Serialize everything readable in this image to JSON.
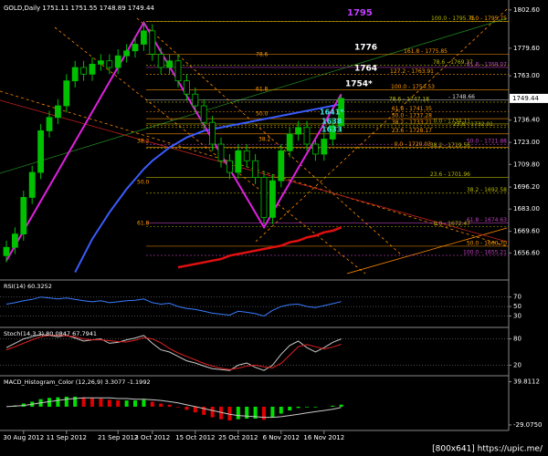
{
  "chart_data": [
    {
      "type": "candlestick",
      "title": "GOLD,Daily 1751.11 1751.55 1748.89 1749.44",
      "categories": [
        null,
        null,
        "30 Aug 2012",
        null,
        null,
        null,
        null,
        "11 Sep 2012",
        null,
        null,
        null,
        null,
        null,
        "21 Sep 2012",
        null,
        null,
        null,
        "3 Oct 2012",
        null,
        null,
        null,
        null,
        "15 Oct 2012",
        null,
        null,
        null,
        null,
        "25 Oct 2012",
        null,
        null,
        null,
        null,
        "6 Nov 2012",
        null,
        null,
        null,
        null,
        "16 Nov 2012",
        null,
        null
      ],
      "open": [
        1655,
        1660,
        1668,
        1690,
        1705,
        1730,
        1738,
        1745,
        1760,
        1768,
        1764,
        1770,
        1772,
        1768,
        1775,
        1778,
        1782,
        1790,
        1776,
        1768,
        1772,
        1760,
        1752,
        1745,
        1735,
        1722,
        1712,
        1705,
        1718,
        1712,
        1702,
        1678,
        1700,
        1718,
        1728,
        1732,
        1722,
        1716,
        1725,
        1733
      ],
      "high": [
        1664,
        1672,
        1694,
        1709,
        1734,
        1742,
        1749,
        1764,
        1772,
        1772,
        1774,
        1776,
        1776,
        1779,
        1782,
        1786,
        1795,
        1794,
        1780,
        1776,
        1776,
        1764,
        1756,
        1749,
        1739,
        1726,
        1716,
        1722,
        1722,
        1716,
        1706,
        1704,
        1722,
        1732,
        1736,
        1736,
        1726,
        1729,
        1737,
        1751.55
      ],
      "low": [
        1651,
        1656,
        1664,
        1686,
        1701,
        1726,
        1734,
        1741,
        1756,
        1760,
        1760,
        1766,
        1764,
        1764,
        1771,
        1774,
        1778,
        1772,
        1764,
        1764,
        1756,
        1748,
        1741,
        1731,
        1718,
        1708,
        1701,
        1701,
        1708,
        1698,
        1674,
        1674,
        1696,
        1714,
        1724,
        1718,
        1712,
        1712,
        1721,
        1729
      ],
      "close": [
        1660,
        1668,
        1690,
        1705,
        1730,
        1738,
        1745,
        1760,
        1768,
        1764,
        1770,
        1772,
        1768,
        1775,
        1778,
        1782,
        1790,
        1776,
        1768,
        1772,
        1760,
        1752,
        1745,
        1735,
        1722,
        1712,
        1705,
        1718,
        1712,
        1702,
        1678,
        1700,
        1718,
        1728,
        1732,
        1722,
        1716,
        1725,
        1733,
        1749.44
      ],
      "up_color": "#00c000",
      "down_color": "#000000",
      "series": [
        {
          "color": "#3a5cff",
          "width": 2,
          "values": [
            null,
            null,
            null,
            null,
            null,
            null,
            null,
            null,
            1645,
            1655,
            1665,
            1673,
            1681,
            1688,
            1695,
            1701,
            1707,
            1712,
            1716,
            1720,
            1723,
            1726,
            1728,
            1730,
            1731,
            1732,
            1733,
            1734,
            1735,
            1736,
            1737,
            1738,
            1739,
            1740,
            1741,
            1742,
            1743,
            1744,
            1745,
            1746
          ]
        },
        {
          "color": "#e01010",
          "width": 2.5,
          "values": [
            null,
            null,
            null,
            null,
            null,
            null,
            null,
            null,
            null,
            null,
            null,
            null,
            null,
            null,
            null,
            null,
            null,
            null,
            null,
            null,
            1648,
            1649,
            1650,
            1651,
            1652,
            1653,
            1655,
            1656,
            1657,
            1658,
            1659,
            1660,
            1661,
            1663,
            1664,
            1666,
            1667,
            1669,
            1670,
            1672
          ]
        },
        {
          "color": "#e020e0",
          "width": 2,
          "values": [
            1652,
            1660.9,
            1669.9,
            1678.8,
            1687.8,
            1696.7,
            1705.6,
            1714.6,
            1723.5,
            1732.4,
            1741.4,
            1750.3,
            1759.3,
            1768.2,
            1777.1,
            1786.1,
            1795,
            1786.2,
            1777.4,
            1768.6,
            1759.8,
            1751.1,
            1742.3,
            1733.5,
            1724.7,
            1715.9,
            1707.1,
            1698.4,
            1689.6,
            1680.8,
            1672,
            1680.9,
            1689.8,
            1698.7,
            1707.6,
            1716.4,
            1725.3,
            1734.2,
            1743.1,
            1752
          ]
        }
      ],
      "ylim": [
        1641.5,
        1805.8
      ],
      "yticks": [
        {
          "value": 1802.6,
          "label": "1802.60"
        },
        {
          "value": 1779.6,
          "label": "1779.60"
        },
        {
          "value": 1763,
          "label": "1763.00"
        },
        {
          "value": 1736.4,
          "label": "1736.40"
        },
        {
          "value": 1723,
          "label": "1723.00"
        },
        {
          "value": 1709.8,
          "label": "1709.80"
        },
        {
          "value": 1696.2,
          "label": "1696.20"
        },
        {
          "value": 1683,
          "label": "1683.00"
        },
        {
          "value": 1669.6,
          "label": "1669.60"
        },
        {
          "value": 1656.6,
          "label": "1656.60"
        }
      ],
      "last_price": {
        "value": 1749.44,
        "label": "1749.44"
      },
      "fib_levels": [
        {
          "label": "100.0 - 1795.75",
          "value": 1795.75,
          "color": "#b8b800"
        },
        {
          "label": "0.0 - 1795.75",
          "value": 1795.75,
          "color": "#ff9900"
        },
        {
          "label": "161.8 - 1775.85",
          "value": 1775.85,
          "color": "#ff9900"
        },
        {
          "label": "78.6 - 1769.37",
          "value": 1769.37,
          "color": "#b8b800"
        },
        {
          "label": "61.8 - 1768.07",
          "value": 1768.07,
          "color": "#c040c0"
        },
        {
          "label": "127.2 - 1763.91",
          "value": 1763.91,
          "color": "#ff9900"
        },
        {
          "label": "100.0 - 1754.53",
          "value": 1754.53,
          "color": "#ff9900"
        },
        {
          "label": "78.6 - 1747.18",
          "value": 1747.18,
          "color": "#b8b800"
        },
        {
          "label": "- 1748.66",
          "value": 1748.66,
          "color": "#dddddd"
        },
        {
          "label": "61.8 - 1741.35",
          "value": 1741.35,
          "color": "#ff9900"
        },
        {
          "label": "50.0 - 1737.28",
          "value": 1737.28,
          "color": "#ff9900"
        },
        {
          "label": "38.2 - 1733.21",
          "value": 1733.21,
          "color": "#ff9900"
        },
        {
          "label": "0.0 - 1734.11",
          "value": 1734.11,
          "color": "#b8b800"
        },
        {
          "label": "23.6 - 1732.01",
          "value": 1732.01,
          "color": "#b8b800"
        },
        {
          "label": "23.6 - 1728.17",
          "value": 1728.17,
          "color": "#ff9900"
        },
        {
          "label": "50.0 - 1721.88",
          "value": 1721.88,
          "color": "#c040c0"
        },
        {
          "label": "0.0 - 1720.03",
          "value": 1720.03,
          "color": "#ff9900"
        },
        {
          "label": "38.2 - 1719.56",
          "value": 1719.56,
          "color": "#b8b800"
        },
        {
          "label": "23.6 - 1701.96",
          "value": 1701.96,
          "color": "#b8b800"
        },
        {
          "label": "38.2 - 1692.58",
          "value": 1692.58,
          "color": "#b8b800"
        },
        {
          "label": "61.8 - 1674.63",
          "value": 1674.63,
          "color": "#c040c0"
        },
        {
          "label": "0.0 - 1672.47",
          "value": 1672.47,
          "color": "#b8b800"
        },
        {
          "label": "50.0 - 1660.70",
          "value": 1660.7,
          "color": "#ff9900"
        },
        {
          "label": "100.0 - 1655.21",
          "value": 1655.21,
          "color": "#c040c0"
        }
      ],
      "targets": [
        {
          "label": "1795",
          "color": "#c040ff"
        },
        {
          "label": "1776",
          "color": "#ffffff"
        },
        {
          "label": "1764",
          "color": "#ffffff"
        },
        {
          "label": "1754*",
          "color": "#ffffff"
        },
        {
          "label": "1641*",
          "color": "#40e0e0"
        },
        {
          "label": "1638",
          "color": "#40e0e0"
        },
        {
          "label": "1633",
          "color": "#40e0e0"
        }
      ],
      "fib_marks": [
        "78.6",
        "61.8",
        "50.0",
        "38.2",
        "38.2",
        "50.0",
        "61.8"
      ],
      "watermark": "[800x641] https://upic.me/"
    },
    {
      "type": "line",
      "title": "RSI(14) 60.3252",
      "series": [
        {
          "color": "#3a7cff",
          "width": 1,
          "values": [
            55,
            58,
            62,
            65,
            70,
            68,
            66,
            68,
            65,
            62,
            60,
            62,
            58,
            60,
            62,
            63,
            66,
            58,
            55,
            57,
            50,
            46,
            44,
            40,
            36,
            34,
            32,
            40,
            38,
            35,
            30,
            42,
            50,
            54,
            55,
            50,
            48,
            52,
            56,
            60.3252
          ]
        }
      ],
      "ylim": [
        10,
        100
      ],
      "yticks": [
        70,
        50,
        30
      ],
      "grid": true
    },
    {
      "type": "line",
      "title": "Stoch(14,3,3) 80.0847 67.7941",
      "series": [
        {
          "color": "#c8c8c8",
          "width": 1,
          "values": [
            60,
            70,
            80,
            85,
            90,
            88,
            85,
            88,
            82,
            75,
            78,
            80,
            70,
            72,
            78,
            82,
            88,
            70,
            55,
            50,
            40,
            30,
            25,
            18,
            12,
            10,
            8,
            20,
            25,
            15,
            8,
            20,
            45,
            65,
            75,
            60,
            50,
            60,
            72,
            80.0847
          ]
        },
        {
          "color": "#e02020",
          "width": 1,
          "values": [
            55,
            62,
            70,
            78,
            85,
            88,
            88,
            87,
            85,
            80,
            78,
            78,
            76,
            74,
            73,
            77,
            83,
            80,
            71,
            58,
            48,
            40,
            32,
            24,
            18,
            13,
            10,
            13,
            18,
            20,
            16,
            14,
            24,
            43,
            62,
            67,
            62,
            57,
            61,
            67.7941
          ]
        }
      ],
      "ylim": [
        0,
        100
      ],
      "yticks": [
        80,
        20
      ],
      "grid": true
    },
    {
      "type": "bar",
      "title": "MACD_Histogram_Color (12,26,9) 3.3077 -1.1992",
      "values": [
        0,
        2,
        5,
        8,
        12,
        14,
        15,
        16,
        16,
        15,
        14,
        13,
        11,
        10,
        10,
        10,
        11,
        8,
        5,
        3,
        -1,
        -5,
        -9,
        -13,
        -17,
        -20,
        -22,
        -20,
        -19,
        -19,
        -21,
        -17,
        -11,
        -6,
        -2,
        -1,
        -1,
        0,
        1.5,
        3.3077
      ],
      "up_color": "#00e000",
      "down_color": "#e00000",
      "series": [
        {
          "color": "#c8c8c8",
          "width": 1,
          "values": [
            0,
            1,
            2,
            4,
            6,
            8,
            10,
            12,
            13,
            14,
            14,
            14,
            14,
            13,
            13,
            12,
            12,
            11,
            10,
            8,
            6,
            3,
            0,
            -3,
            -6,
            -9,
            -12,
            -14,
            -15,
            -16,
            -17,
            -17,
            -16,
            -14,
            -12,
            -10,
            -8,
            -6,
            -4,
            -1.1992
          ]
        }
      ],
      "ylim": [
        -35,
        45
      ],
      "yticks": [
        39.8112,
        {
          "value": -29.075,
          "label": "-29.0750"
        }
      ]
    }
  ]
}
